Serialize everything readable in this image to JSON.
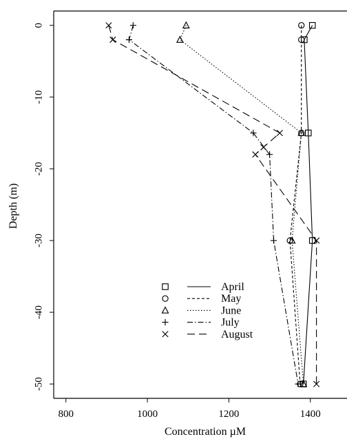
{
  "chart_data": {
    "type": "line",
    "title": "",
    "xlabel": "Concentration µM",
    "ylabel": "Depth (m)",
    "xlim": [
      770,
      1490
    ],
    "ylim": [
      -52,
      2
    ],
    "xticks": [
      800,
      1000,
      1200,
      1400
    ],
    "yticks": [
      0,
      -10,
      -20,
      -30,
      -40,
      -50
    ],
    "x_orientation": "bottom",
    "y_orientation": "left",
    "grid": false,
    "legend": {
      "position": "lower-left-center",
      "items": [
        {
          "series": "April",
          "marker": "square",
          "line_style": "solid"
        },
        {
          "series": "May",
          "marker": "circle",
          "line_style": "short-dash"
        },
        {
          "series": "June",
          "marker": "triangle",
          "line_style": "dotted"
        },
        {
          "series": "July",
          "marker": "plus",
          "line_style": "dash-dot"
        },
        {
          "series": "August",
          "marker": "cross",
          "line_style": "long-dash"
        }
      ]
    },
    "series": [
      {
        "name": "April",
        "marker": "square",
        "line_style": "solid",
        "points": [
          {
            "x": 1405,
            "y": 0
          },
          {
            "x": 1385,
            "y": -2
          },
          {
            "x": 1395,
            "y": -15
          },
          {
            "x": 1405,
            "y": -30
          },
          {
            "x": 1383,
            "y": -50
          }
        ]
      },
      {
        "name": "May",
        "marker": "circle",
        "line_style": "short-dash",
        "points": [
          {
            "x": 1378,
            "y": 0
          },
          {
            "x": 1378,
            "y": -2
          },
          {
            "x": 1378,
            "y": -15
          },
          {
            "x": 1350,
            "y": -30
          },
          {
            "x": 1375,
            "y": -50
          }
        ]
      },
      {
        "name": "June",
        "marker": "triangle",
        "line_style": "dotted",
        "points": [
          {
            "x": 1095,
            "y": 0
          },
          {
            "x": 1080,
            "y": -2
          },
          {
            "x": 1378,
            "y": -15
          },
          {
            "x": 1355,
            "y": -30
          },
          {
            "x": 1383,
            "y": -50
          }
        ]
      },
      {
        "name": "July",
        "marker": "plus",
        "line_style": "dash-dot",
        "points": [
          {
            "x": 965,
            "y": 0
          },
          {
            "x": 955,
            "y": -2
          },
          {
            "x": 1260,
            "y": -15
          },
          {
            "x": 1300,
            "y": -18
          },
          {
            "x": 1310,
            "y": -30
          },
          {
            "x": 1370,
            "y": -50
          }
        ]
      },
      {
        "name": "August",
        "marker": "cross",
        "line_style": "long-dash",
        "points": [
          {
            "x": 905,
            "y": 0
          },
          {
            "x": 915,
            "y": -2
          },
          {
            "x": 1325,
            "y": -15
          },
          {
            "x": 1285,
            "y": -17
          },
          {
            "x": 1265,
            "y": -18
          },
          {
            "x": 1415,
            "y": -30
          },
          {
            "x": 1415,
            "y": -50
          }
        ]
      }
    ]
  }
}
